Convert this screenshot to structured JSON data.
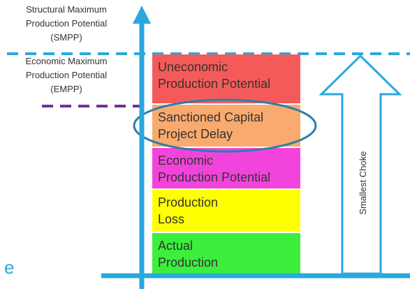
{
  "labels": {
    "smpp": [
      "Structural Maximum",
      "Production Potential",
      "(SMPP)"
    ],
    "empp": [
      "Economic Maximum",
      "Production Potential",
      "(EMPP)"
    ]
  },
  "blocks": [
    {
      "lines": [
        "Uneconomic",
        "Production Potential"
      ],
      "color": "#f55a5a"
    },
    {
      "lines": [
        "Sanctioned Capital",
        "Project Delay"
      ],
      "color": "#f9aa6e"
    },
    {
      "lines": [
        "Economic",
        "Production Potential"
      ],
      "color": "#f244dc"
    },
    {
      "lines": [
        "Production",
        "Loss"
      ],
      "color": "#ffff00"
    },
    {
      "lines": [
        "Actual",
        "Production"
      ],
      "color": "#3cef3c"
    }
  ],
  "arrow_label": "Smallest Choke",
  "corner_text": "e"
}
